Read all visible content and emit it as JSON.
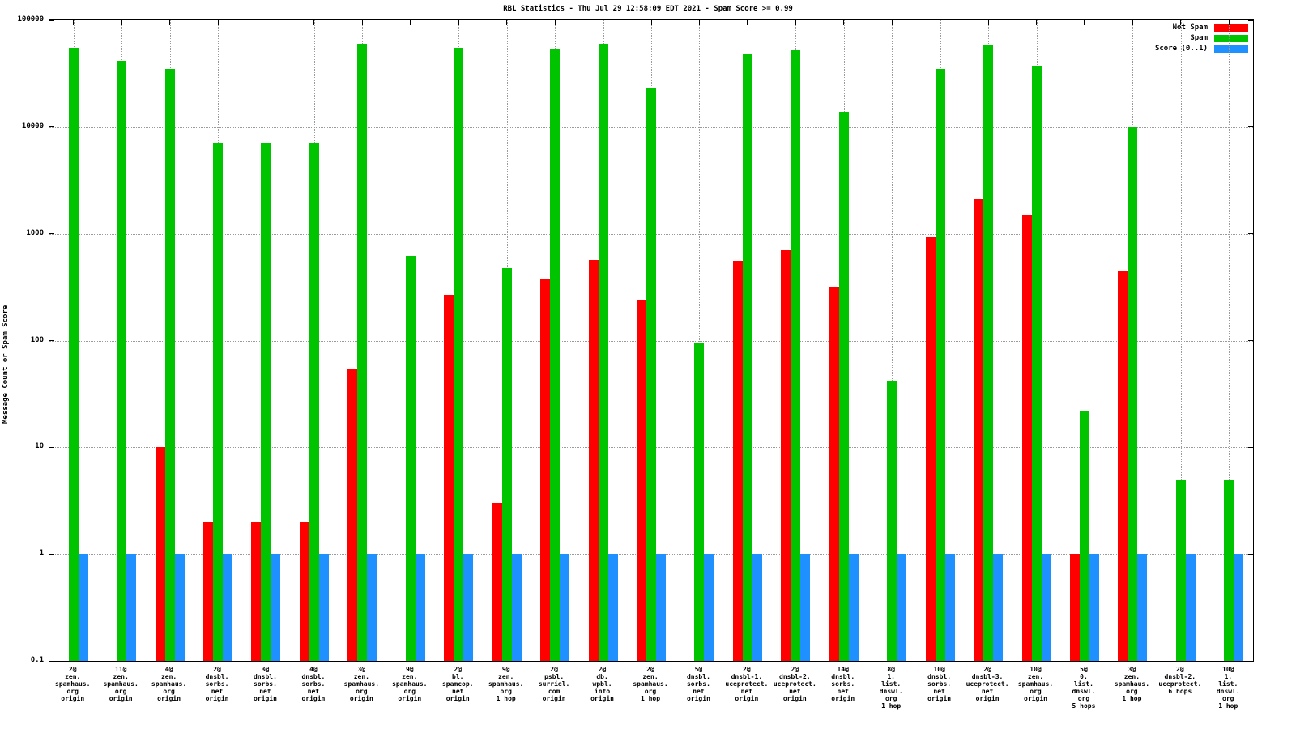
{
  "chart_data": {
    "type": "bar",
    "title": "RBL Statistics - Thu Jul 29 12:58:09 EDT 2021 - Spam Score >= 0.99",
    "ylabel": "Message Count or Spam Score",
    "xlabel": "",
    "scale": "log",
    "ylim": [
      0.1,
      100000
    ],
    "ytick_labels": [
      "0.1",
      "1",
      "10",
      "100",
      "1000",
      "10000",
      "100000"
    ],
    "ytick_values": [
      0.1,
      1,
      10,
      100,
      1000,
      10000,
      100000
    ],
    "grid": true,
    "legend_position": "top-right",
    "categories": [
      "2@ zen.spamhaus.org origin",
      "11@ zen.spamhaus.org origin",
      "4@ zen.spamhaus.org origin",
      "2@ dnsbl.sorbs.net origin",
      "3@ dnsbl.sorbs.net origin",
      "4@ dnsbl.sorbs.net origin",
      "3@ zen.spamhaus.org origin",
      "9@ zen.spamhaus.org origin",
      "2@ bl.spamcop.net origin",
      "9@ zen.spamhaus.org 1 hop",
      "2@ psbl.surriel.com origin",
      "2@ db.wpbl.info origin",
      "2@ zen.spamhaus.org 1 hop",
      "5@ dnsbl.sorbs.net origin",
      "2@ dnsbl-1.uceprotect.net origin",
      "2@ dnsbl-2.uceprotect.net origin",
      "14@ dnsbl.sorbs.net origin",
      "8@ 1.list.dnswl.org 1 hop",
      "10@ dnsbl.sorbs.net origin",
      "2@ dnsbl-3.uceprotect.net origin",
      "10@ zen.spamhaus.org origin",
      "5@ 0.list.dnswl.org 5 hops",
      "3@ zen.spamhaus.org 1 hop",
      "2@ dnsbl-2.uceprotect. 6 hops",
      "10@ 1.list.dnswl.org 1 hop"
    ],
    "category_label_lines": [
      [
        "2@",
        "zen.",
        "spamhaus.",
        "org",
        "origin"
      ],
      [
        "11@",
        "zen.",
        "spamhaus.",
        "org",
        "origin"
      ],
      [
        "4@",
        "zen.",
        "spamhaus.",
        "org",
        "origin"
      ],
      [
        "2@",
        "dnsbl.",
        "sorbs.",
        "net",
        "origin"
      ],
      [
        "3@",
        "dnsbl.",
        "sorbs.",
        "net",
        "origin"
      ],
      [
        "4@",
        "dnsbl.",
        "sorbs.",
        "net",
        "origin"
      ],
      [
        "3@",
        "zen.",
        "spamhaus.",
        "org",
        "origin"
      ],
      [
        "9@",
        "zen.",
        "spamhaus.",
        "org",
        "origin"
      ],
      [
        "2@",
        "bl.",
        "spamcop.",
        "net",
        "origin"
      ],
      [
        "9@",
        "zen.",
        "spamhaus.",
        "org",
        "1 hop"
      ],
      [
        "2@",
        "psbl.",
        "surriel.",
        "com",
        "origin"
      ],
      [
        "2@",
        "db.",
        "wpbl.",
        "info",
        "origin"
      ],
      [
        "2@",
        "zen.",
        "spamhaus.",
        "org",
        "1 hop"
      ],
      [
        "5@",
        "dnsbl.",
        "sorbs.",
        "net",
        "origin"
      ],
      [
        "2@",
        "dnsbl-1.",
        "uceprotect.",
        "net",
        "origin"
      ],
      [
        "2@",
        "dnsbl-2.",
        "uceprotect.",
        "net",
        "origin"
      ],
      [
        "14@",
        "dnsbl.",
        "sorbs.",
        "net",
        "origin"
      ],
      [
        "8@",
        "1.",
        "list.",
        "dnswl.",
        "org",
        "1 hop"
      ],
      [
        "10@",
        "dnsbl.",
        "sorbs.",
        "net",
        "origin"
      ],
      [
        "2@",
        "dnsbl-3.",
        "uceprotect.",
        "net",
        "origin"
      ],
      [
        "10@",
        "zen.",
        "spamhaus.",
        "org",
        "origin"
      ],
      [
        "5@",
        "0.",
        "list.",
        "dnswl.",
        "org",
        "5 hops"
      ],
      [
        "3@",
        "zen.",
        "spamhaus.",
        "org",
        "1 hop"
      ],
      [
        "2@",
        "dnsbl-2.",
        "uceprotect.",
        "6 hops"
      ],
      [
        "10@",
        "1.",
        "list.",
        "dnswl.",
        "org",
        "1 hop"
      ]
    ],
    "series": [
      {
        "name": "Not Spam",
        "color": "#ff0000",
        "values": [
          null,
          null,
          10,
          2,
          2,
          2,
          55,
          null,
          270,
          3,
          380,
          570,
          240,
          null,
          560,
          700,
          320,
          null,
          950,
          2100,
          1500,
          1,
          450,
          null,
          null
        ]
      },
      {
        "name": "Spam",
        "color": "#00c400",
        "values": [
          55000,
          42000,
          35000,
          7000,
          7000,
          7000,
          60000,
          620,
          55000,
          480,
          53000,
          60000,
          23000,
          95,
          48000,
          52000,
          14000,
          42,
          35000,
          58000,
          37000,
          22,
          10000,
          5,
          5
        ]
      },
      {
        "name": "Score (0..1)",
        "color": "#1e90ff",
        "values": [
          1,
          1,
          1,
          1,
          1,
          1,
          1,
          1,
          1,
          1,
          1,
          1,
          1,
          1,
          1,
          1,
          1,
          1,
          1,
          1,
          1,
          1,
          1,
          1,
          1
        ]
      }
    ]
  }
}
